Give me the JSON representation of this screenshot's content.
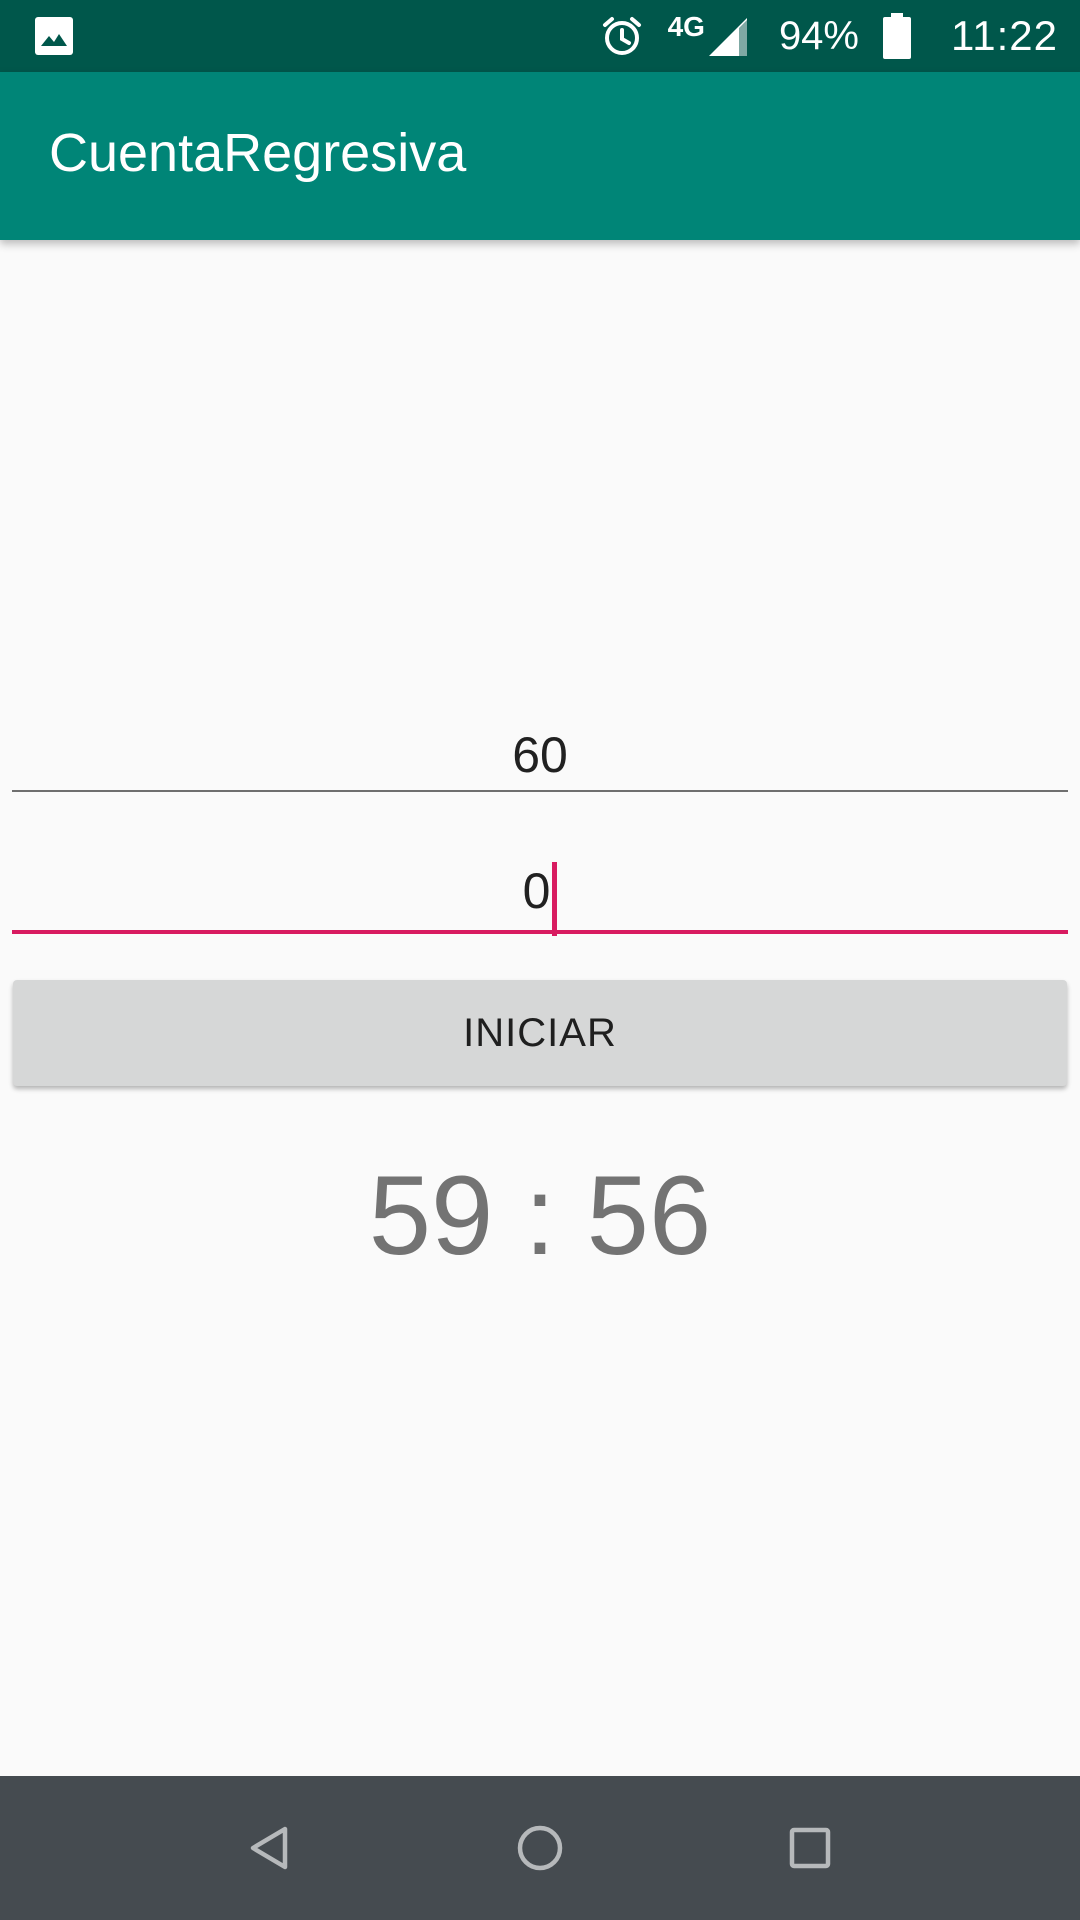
{
  "status_bar": {
    "left_icon": "image-icon",
    "alarm_icon": "alarm-icon",
    "network": "4G",
    "signal_icon": "signal-icon",
    "battery_percent": "94%",
    "battery_icon": "battery-icon",
    "time": "11:22"
  },
  "app_bar": {
    "title": "CuentaRegresiva"
  },
  "form": {
    "minutes_value": "60",
    "seconds_value": "0",
    "start_button_label": "INICIAR"
  },
  "countdown": {
    "display": "59 : 56"
  },
  "nav_bar": {
    "back_icon": "back-triangle-icon",
    "home_icon": "home-circle-icon",
    "recent_icon": "recent-square-icon"
  },
  "colors": {
    "status_bar": "#00574b",
    "app_bar": "#008577",
    "accent": "#d81b60",
    "button_bg": "#d6d7d7",
    "nav_bar": "#454b50"
  }
}
